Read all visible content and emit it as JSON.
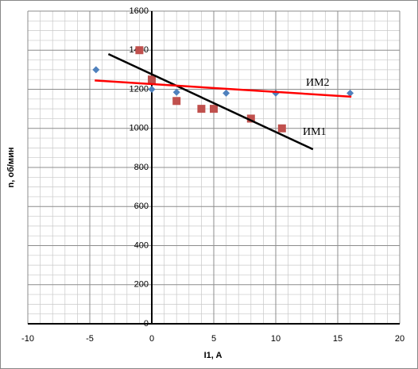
{
  "chart_data": {
    "type": "scatter",
    "xlabel": "I1, A",
    "ylabel": "n, об/мин",
    "xlim": [
      -10,
      20
    ],
    "xticks": [
      -10,
      -5,
      0,
      5,
      10,
      15,
      20
    ],
    "ylim": [
      0,
      1600
    ],
    "yticks": [
      0,
      200,
      400,
      600,
      800,
      1000,
      1200,
      1400,
      1600
    ],
    "grid": true,
    "series": [
      {
        "color": "#4f81bd",
        "marker": "diamond",
        "x": [
          -4.5,
          0,
          2,
          6,
          10,
          16
        ],
        "values": [
          1300,
          1200,
          1185,
          1180,
          1180,
          1180
        ]
      },
      {
        "color": "#c0504d",
        "marker": "square",
        "x": [
          -1,
          0,
          2,
          4,
          5,
          8,
          10.5
        ],
        "values": [
          1400,
          1250,
          1140,
          1100,
          1100,
          1050,
          1000
        ]
      },
      {
        "color": "#000000",
        "marker": "line",
        "x": [
          -3.5,
          13
        ],
        "values": [
          1380,
          893
        ]
      },
      {
        "color": "#ff0000",
        "marker": "line",
        "x": [
          -4.6,
          16.1
        ],
        "values": [
          1245,
          1162
        ]
      }
    ],
    "annotations": [
      {
        "text": "ИМ2"
      },
      {
        "text": "ИМ1"
      }
    ]
  }
}
